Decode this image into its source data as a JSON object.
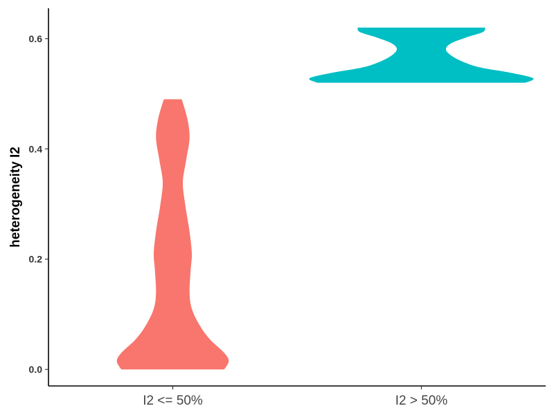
{
  "chart_data": {
    "type": "violin",
    "title": "",
    "xlabel": "",
    "ylabel": "heterogeneity I2",
    "ylim": [
      -0.03,
      0.655
    ],
    "yticks": [
      0.0,
      0.2,
      0.4,
      0.6
    ],
    "ytick_labels": [
      "0.0",
      "0.2",
      "0.4",
      "0.6"
    ],
    "grid": false,
    "legend": "none",
    "categories": [
      "I2 <= 50%",
      "I2 > 50%"
    ],
    "series": [
      {
        "category": "I2 <= 50%",
        "color": "#F8766D",
        "y_min": 0.0,
        "y_max": 0.49,
        "density_profile": [
          {
            "y": 0.0,
            "w": 0.46
          },
          {
            "y": 0.015,
            "w": 0.5
          },
          {
            "y": 0.03,
            "w": 0.46
          },
          {
            "y": 0.055,
            "w": 0.33
          },
          {
            "y": 0.08,
            "w": 0.24
          },
          {
            "y": 0.11,
            "w": 0.17
          },
          {
            "y": 0.14,
            "w": 0.15
          },
          {
            "y": 0.18,
            "w": 0.16
          },
          {
            "y": 0.21,
            "w": 0.17
          },
          {
            "y": 0.25,
            "w": 0.15
          },
          {
            "y": 0.3,
            "w": 0.11
          },
          {
            "y": 0.34,
            "w": 0.09
          },
          {
            "y": 0.38,
            "w": 0.12
          },
          {
            "y": 0.42,
            "w": 0.15
          },
          {
            "y": 0.455,
            "w": 0.13
          },
          {
            "y": 0.49,
            "w": 0.08
          }
        ]
      },
      {
        "category": "I2 > 50%",
        "color": "#00BFC4",
        "y_min": 0.52,
        "y_max": 0.62,
        "density_profile": [
          {
            "y": 0.52,
            "w": 0.93
          },
          {
            "y": 0.528,
            "w": 1.0
          },
          {
            "y": 0.538,
            "w": 0.8
          },
          {
            "y": 0.548,
            "w": 0.52
          },
          {
            "y": 0.56,
            "w": 0.35
          },
          {
            "y": 0.572,
            "w": 0.25
          },
          {
            "y": 0.582,
            "w": 0.22
          },
          {
            "y": 0.592,
            "w": 0.27
          },
          {
            "y": 0.602,
            "w": 0.4
          },
          {
            "y": 0.612,
            "w": 0.55
          },
          {
            "y": 0.62,
            "w": 0.57
          }
        ]
      }
    ]
  }
}
